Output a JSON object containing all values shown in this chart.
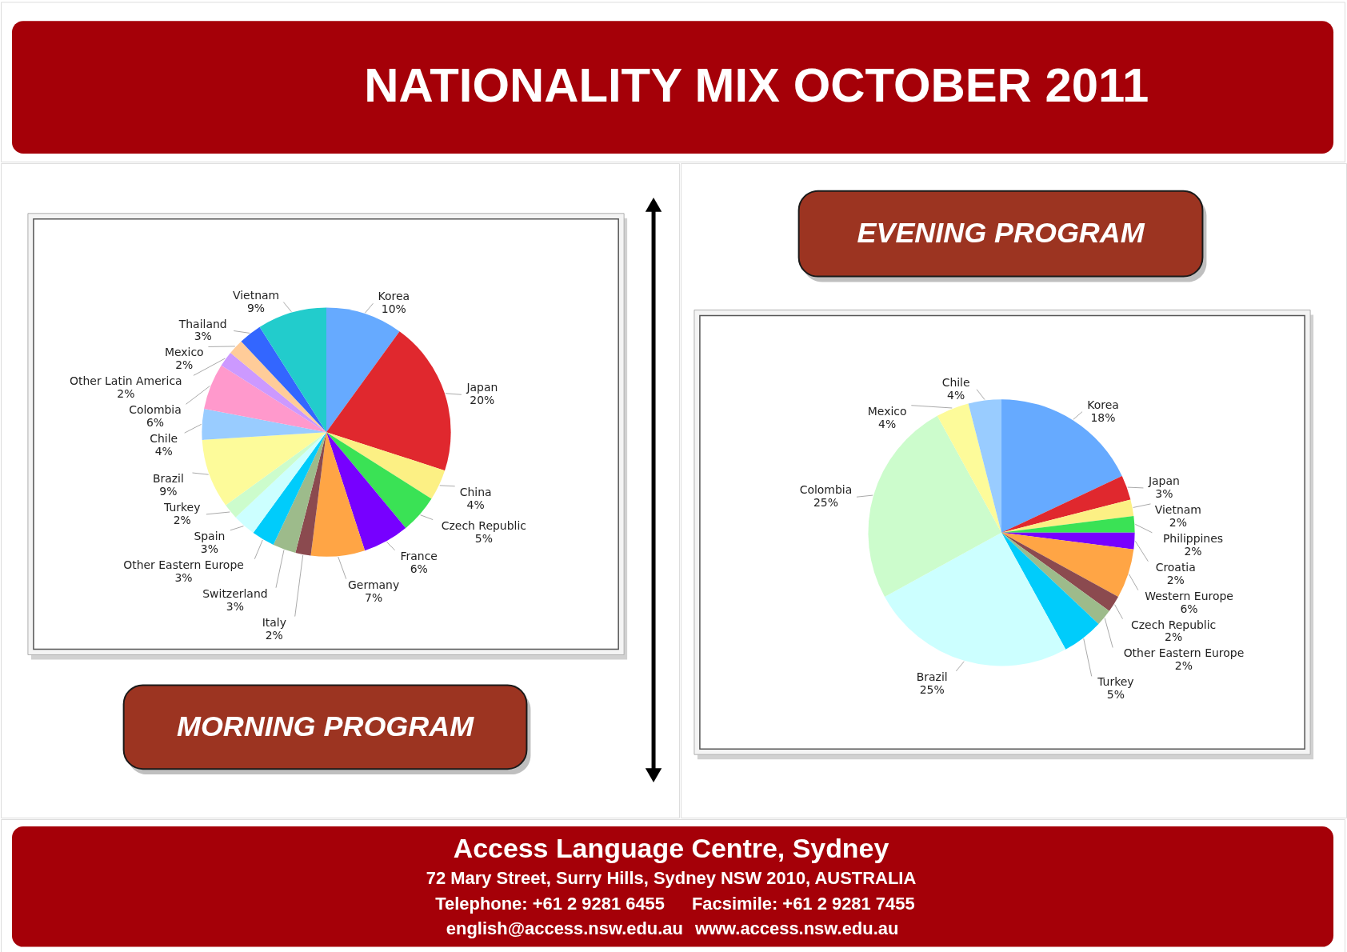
{
  "chart_data": [
    {
      "type": "pie",
      "title": "NATIONALITY MIX OCTOBER 2011",
      "subtitle": "MORNING PROGRAM",
      "categories": [
        "Korea",
        "Japan",
        "China",
        "Czech Republic",
        "France",
        "Germany",
        "Italy",
        "Switzerland",
        "Other Eastern Europe",
        "Spain",
        "Turkey",
        "Brazil",
        "Chile",
        "Colombia",
        "Other Latin America",
        "Mexico",
        "Thailand",
        "Vietnam"
      ],
      "values": [
        10,
        20,
        4,
        5,
        6,
        7,
        2,
        3,
        3,
        3,
        2,
        9,
        4,
        6,
        2,
        2,
        3,
        9
      ],
      "value_labels": [
        "10%",
        "20%",
        "4%",
        "5%",
        "6%",
        "7%",
        "2%",
        "3%",
        "3%",
        "3%",
        "2%",
        "9%",
        "4%",
        "6%",
        "2%",
        "2%",
        "3%",
        "9%"
      ],
      "colors": [
        "#66aaff",
        "#e0282e",
        "#fcf084",
        "#3ae255",
        "#7700ff",
        "#ffa545",
        "#8b4a4f",
        "#9dbb8b",
        "#00ccfb",
        "#ccffff",
        "#ccfccc",
        "#fdfb9a",
        "#99ccff",
        "#ff99cc",
        "#cc99ff",
        "#ffcc99",
        "#3366ff",
        "#22cccc"
      ]
    },
    {
      "type": "pie",
      "subtitle": "EVENING PROGRAM",
      "categories": [
        "Korea",
        "Japan",
        "Vietnam",
        "Philippines",
        "Croatia",
        "Western Europe",
        "Czech Republic",
        "Other Eastern Europe",
        "Turkey",
        "Brazil",
        "Colombia",
        "Mexico",
        "Chile"
      ],
      "values": [
        18,
        3,
        2,
        2,
        2,
        6,
        2,
        2,
        5,
        25,
        25,
        4,
        4
      ],
      "value_labels": [
        "18%",
        "3%",
        "2%",
        "2%",
        "2%",
        "6%",
        "2%",
        "2%",
        "5%",
        "25%",
        "25%",
        "4%",
        "4%"
      ],
      "colors": [
        "#66aaff",
        "#e0282e",
        "#fcf084",
        "#3ae255",
        "#7700ff",
        "#ffa545",
        "#8b4a4f",
        "#9dbb8b",
        "#00ccfb",
        "#ccffff",
        "#ccfccc",
        "#fdfb9a",
        "#99ccff"
      ],
      "annotations": [
        "Access Language Centre, Sydney",
        "72 Mary Street, Surry Hills, Sydney NSW 2010, AUSTRALIA",
        "Telephone: +61 2 9281 6455",
        "Facsimile: +61 2 9281 7455",
        "english@access.nsw.edu.au",
        "www.access.nsw.edu.au"
      ]
    }
  ]
}
